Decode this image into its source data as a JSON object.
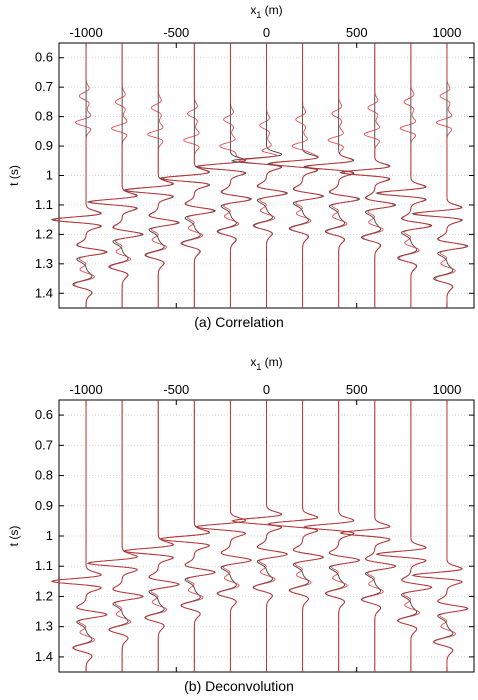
{
  "chart_data": [
    {
      "type": "line",
      "title": "",
      "caption": "(a) Correlation",
      "xlabel": "x_1 (m)",
      "xlabel_main": "x",
      "xlabel_sub": "1",
      "xlabel_unit": " (m)",
      "ylabel": "t (s)",
      "xlim": [
        -1150,
        1150
      ],
      "ylim": [
        0.55,
        1.45
      ],
      "y_reversed": true,
      "xticks": [
        -1000,
        -500,
        0,
        500,
        1000
      ],
      "xtick_labels": [
        "-1000",
        "-500",
        "0",
        "500",
        "1000"
      ],
      "yticks": [
        0.6,
        0.7,
        0.8,
        0.9,
        1.0,
        1.1,
        1.2,
        1.3,
        1.4
      ],
      "ytick_labels": [
        "0.6",
        "0.7",
        "0.8",
        "0.9",
        "1",
        "1.1",
        "1.2",
        "1.3",
        "1.4"
      ],
      "grid": true,
      "trace_offsets": [
        -1000,
        -800,
        -600,
        -400,
        -200,
        0,
        200,
        400,
        600,
        800,
        1000
      ],
      "arrival_times": [
        1.15,
        1.09,
        1.05,
        1.01,
        0.97,
        0.95,
        0.96,
        0.97,
        0.99,
        1.06,
        1.13
      ],
      "series": [
        {
          "role": "reference",
          "color": "#404040"
        },
        {
          "role": "estimate",
          "color": "#e03030",
          "spurious_arrival_times": [
            0.82,
            0.84,
            0.86,
            0.88,
            0.9,
            0.92,
            0.9,
            0.88,
            0.86,
            0.84,
            0.82
          ]
        }
      ]
    },
    {
      "type": "line",
      "title": "",
      "caption": "(b) Deconvolution",
      "xlabel": "x_1 (m)",
      "xlabel_main": "x",
      "xlabel_sub": "1",
      "xlabel_unit": " (m)",
      "ylabel": "t (s)",
      "xlim": [
        -1150,
        1150
      ],
      "ylim": [
        0.55,
        1.45
      ],
      "y_reversed": true,
      "xticks": [
        -1000,
        -500,
        0,
        500,
        1000
      ],
      "xtick_labels": [
        "-1000",
        "-500",
        "0",
        "500",
        "1000"
      ],
      "yticks": [
        0.6,
        0.7,
        0.8,
        0.9,
        1.0,
        1.1,
        1.2,
        1.3,
        1.4
      ],
      "ytick_labels": [
        "0.6",
        "0.7",
        "0.8",
        "0.9",
        "1",
        "1.1",
        "1.2",
        "1.3",
        "1.4"
      ],
      "grid": true,
      "trace_offsets": [
        -1000,
        -800,
        -600,
        -400,
        -200,
        0,
        200,
        400,
        600,
        800,
        1000
      ],
      "arrival_times": [
        1.15,
        1.09,
        1.05,
        1.01,
        0.97,
        0.95,
        0.96,
        0.97,
        0.99,
        1.06,
        1.13
      ],
      "series": [
        {
          "role": "reference",
          "color": "#404040"
        },
        {
          "role": "estimate",
          "color": "#e03030",
          "spurious_arrival_times": []
        }
      ]
    }
  ]
}
